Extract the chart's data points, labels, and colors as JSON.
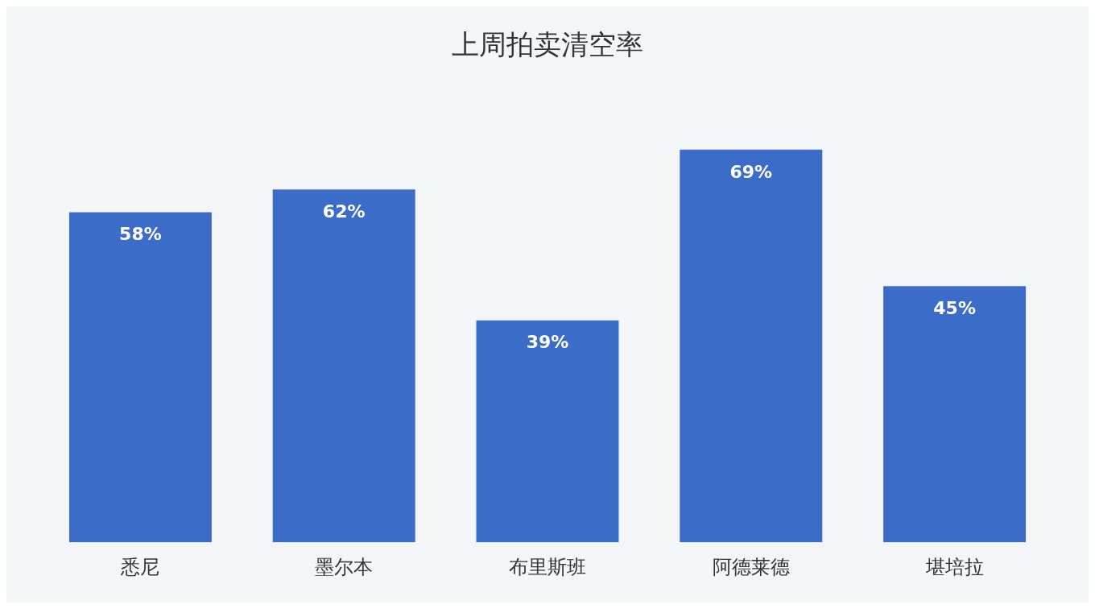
{
  "chart_data": {
    "type": "bar",
    "title": "上周拍卖清空率",
    "categories": [
      "悉尼",
      "墨尔本",
      "布里斯班",
      "阿德莱德",
      "堪培拉"
    ],
    "values": [
      58,
      62,
      39,
      69,
      45
    ],
    "value_labels": [
      "58%",
      "62%",
      "39%",
      "69%",
      "45%"
    ],
    "color": "#3b6cc7",
    "grid": false,
    "legend": false
  }
}
